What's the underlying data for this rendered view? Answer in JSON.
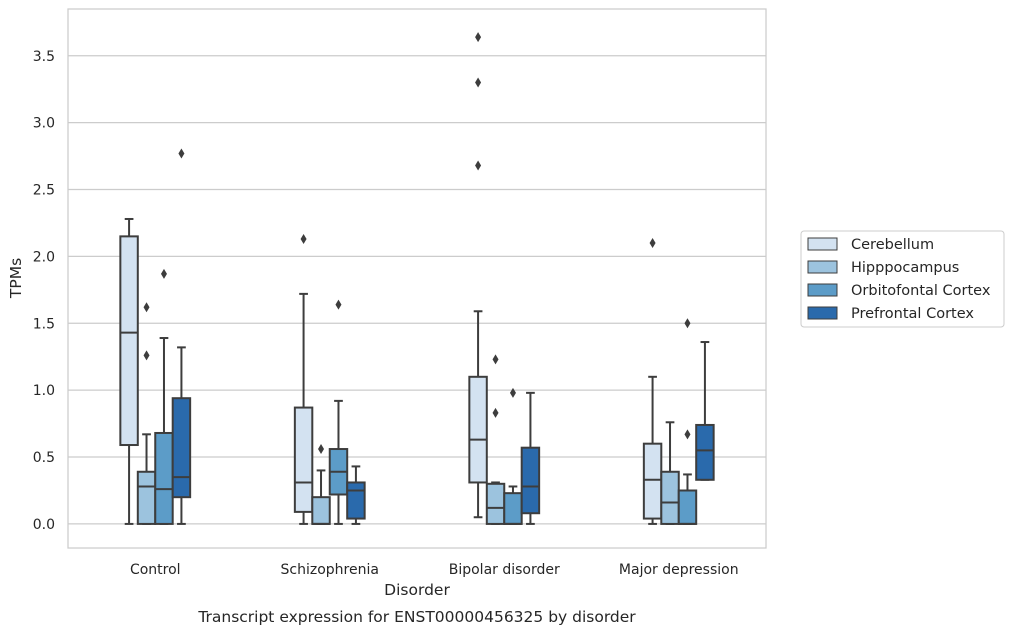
{
  "caption": "Transcript expression for ENST00000456325 by disorder",
  "chart_data": {
    "type": "box",
    "xlabel": "Disorder",
    "ylabel": "TPMs",
    "ylim": [
      -0.18,
      3.85
    ],
    "yticks": [
      0.0,
      0.5,
      1.0,
      1.5,
      2.0,
      2.5,
      3.0,
      3.5
    ],
    "ytick_labels": [
      "0.0",
      "0.5",
      "1.0",
      "1.5",
      "2.0",
      "2.5",
      "3.0",
      "3.5"
    ],
    "grid": "horizontal",
    "legend_position": "right",
    "categories": [
      "Control",
      "Schizophrenia",
      "Bipolar disorder",
      "Major depression"
    ],
    "series": [
      {
        "name": "Cerebellum",
        "color": "#d3e2f1",
        "boxes": [
          {
            "whisker_low": 0.0,
            "q1": 0.59,
            "median": 1.43,
            "q3": 2.15,
            "whisker_high": 2.28,
            "outliers": []
          },
          {
            "whisker_low": 0.0,
            "q1": 0.09,
            "median": 0.31,
            "q3": 0.87,
            "whisker_high": 1.72,
            "outliers": [
              2.13
            ]
          },
          {
            "whisker_low": 0.05,
            "q1": 0.31,
            "median": 0.63,
            "q3": 1.1,
            "whisker_high": 1.59,
            "outliers": [
              2.68,
              3.3,
              3.64
            ]
          },
          {
            "whisker_low": 0.0,
            "q1": 0.04,
            "median": 0.33,
            "q3": 0.6,
            "whisker_high": 1.1,
            "outliers": [
              2.1
            ]
          }
        ]
      },
      {
        "name": "Hipppocampus",
        "color": "#9cc3de",
        "boxes": [
          {
            "whisker_low": 0.0,
            "q1": 0.0,
            "median": 0.28,
            "q3": 0.39,
            "whisker_high": 0.67,
            "outliers": [
              1.26,
              1.62
            ]
          },
          {
            "whisker_low": 0.0,
            "q1": 0.0,
            "median": 0.0,
            "q3": 0.2,
            "whisker_high": 0.4,
            "outliers": [
              0.56
            ]
          },
          {
            "whisker_low": 0.0,
            "q1": 0.0,
            "median": 0.12,
            "q3": 0.3,
            "whisker_high": 0.31,
            "outliers": [
              0.83,
              1.23
            ]
          },
          {
            "whisker_low": 0.0,
            "q1": 0.0,
            "median": 0.16,
            "q3": 0.39,
            "whisker_high": 0.76,
            "outliers": []
          }
        ]
      },
      {
        "name": "Orbitofontal Cortex",
        "color": "#5c9cc8",
        "boxes": [
          {
            "whisker_low": 0.0,
            "q1": 0.0,
            "median": 0.26,
            "q3": 0.68,
            "whisker_high": 1.39,
            "outliers": [
              1.87
            ]
          },
          {
            "whisker_low": 0.0,
            "q1": 0.22,
            "median": 0.39,
            "q3": 0.56,
            "whisker_high": 0.92,
            "outliers": [
              1.64
            ]
          },
          {
            "whisker_low": 0.0,
            "q1": 0.0,
            "median": 0.0,
            "q3": 0.23,
            "whisker_high": 0.28,
            "outliers": [
              0.98
            ]
          },
          {
            "whisker_low": 0.0,
            "q1": 0.0,
            "median": 0.0,
            "q3": 0.25,
            "whisker_high": 0.37,
            "outliers": [
              0.67,
              1.5
            ]
          }
        ]
      },
      {
        "name": "Prefrontal Cortex",
        "color": "#2a6aac",
        "boxes": [
          {
            "whisker_low": 0.0,
            "q1": 0.2,
            "median": 0.35,
            "q3": 0.94,
            "whisker_high": 1.32,
            "outliers": [
              2.77
            ]
          },
          {
            "whisker_low": 0.0,
            "q1": 0.04,
            "median": 0.25,
            "q3": 0.31,
            "whisker_high": 0.43,
            "outliers": []
          },
          {
            "whisker_low": 0.0,
            "q1": 0.08,
            "median": 0.28,
            "q3": 0.57,
            "whisker_high": 0.98,
            "outliers": []
          },
          {
            "whisker_low": 0.33,
            "q1": 0.33,
            "median": 0.55,
            "q3": 0.74,
            "whisker_high": 1.36,
            "outliers": []
          }
        ]
      }
    ]
  }
}
